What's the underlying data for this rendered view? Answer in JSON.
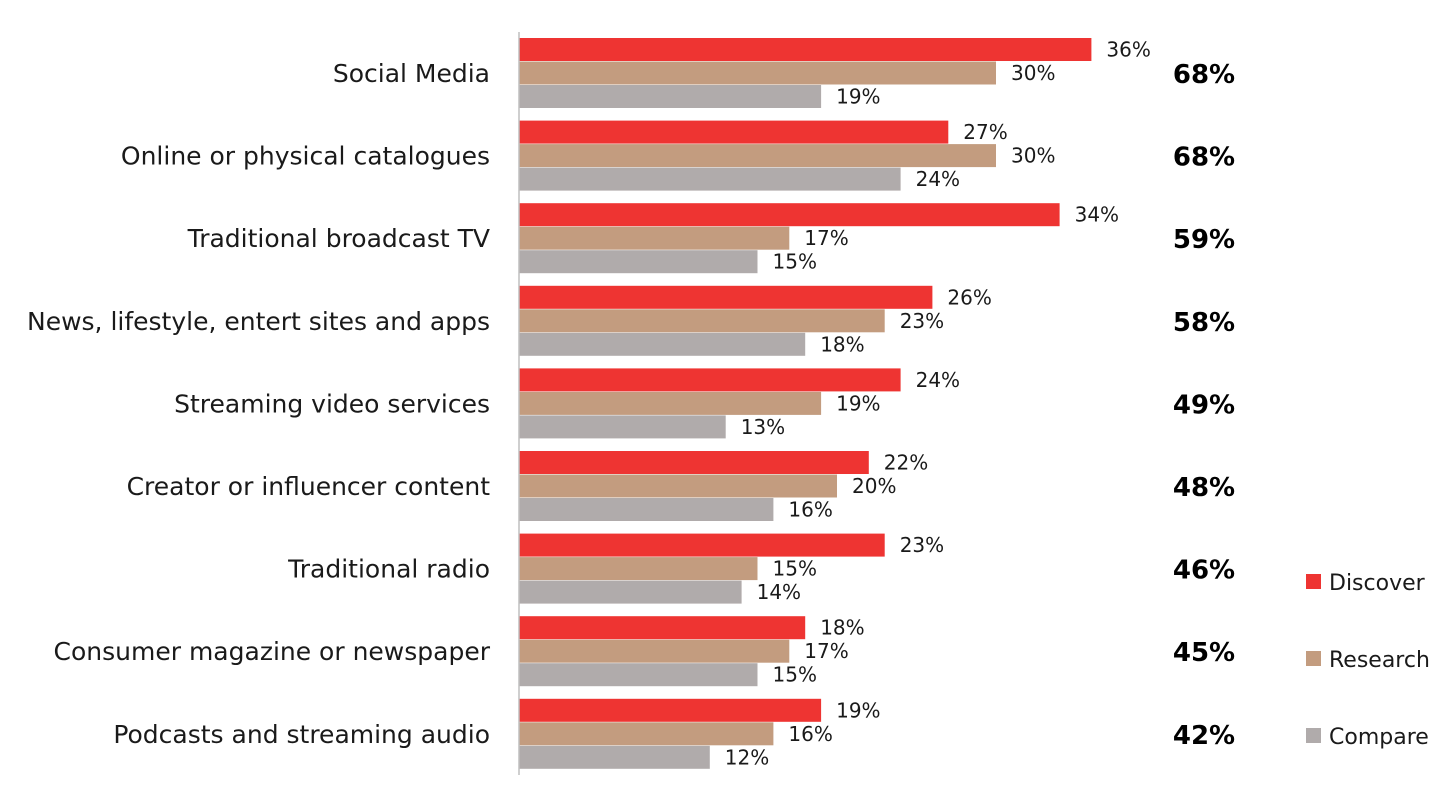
{
  "chart_data": {
    "type": "bar",
    "orientation": "horizontal",
    "categories": [
      "Social Media",
      "Online or physical catalogues",
      "Traditional broadcast TV",
      "News, lifestyle, entert sites and apps",
      "Streaming video services",
      "Creator or influencer content",
      "Traditional radio",
      "Consumer magazine or newspaper",
      "Podcasts and streaming audio"
    ],
    "series": [
      {
        "name": "Discover",
        "color": "#ee3432",
        "values": [
          36,
          27,
          34,
          26,
          24,
          22,
          23,
          18,
          19
        ]
      },
      {
        "name": "Research",
        "color": "#c39c7f",
        "values": [
          30,
          30,
          17,
          23,
          19,
          20,
          15,
          17,
          16
        ]
      },
      {
        "name": "Compare",
        "color": "#b0abab",
        "values": [
          19,
          24,
          15,
          18,
          13,
          16,
          14,
          15,
          12
        ]
      }
    ],
    "totals": [
      "68%",
      "68%",
      "59%",
      "58%",
      "49%",
      "48%",
      "46%",
      "45%",
      "42%"
    ],
    "value_suffix": "%",
    "xlim": [
      0,
      40
    ],
    "grid": false,
    "legend": "bottom-right",
    "axis_line_color": "#bfbfbf"
  }
}
